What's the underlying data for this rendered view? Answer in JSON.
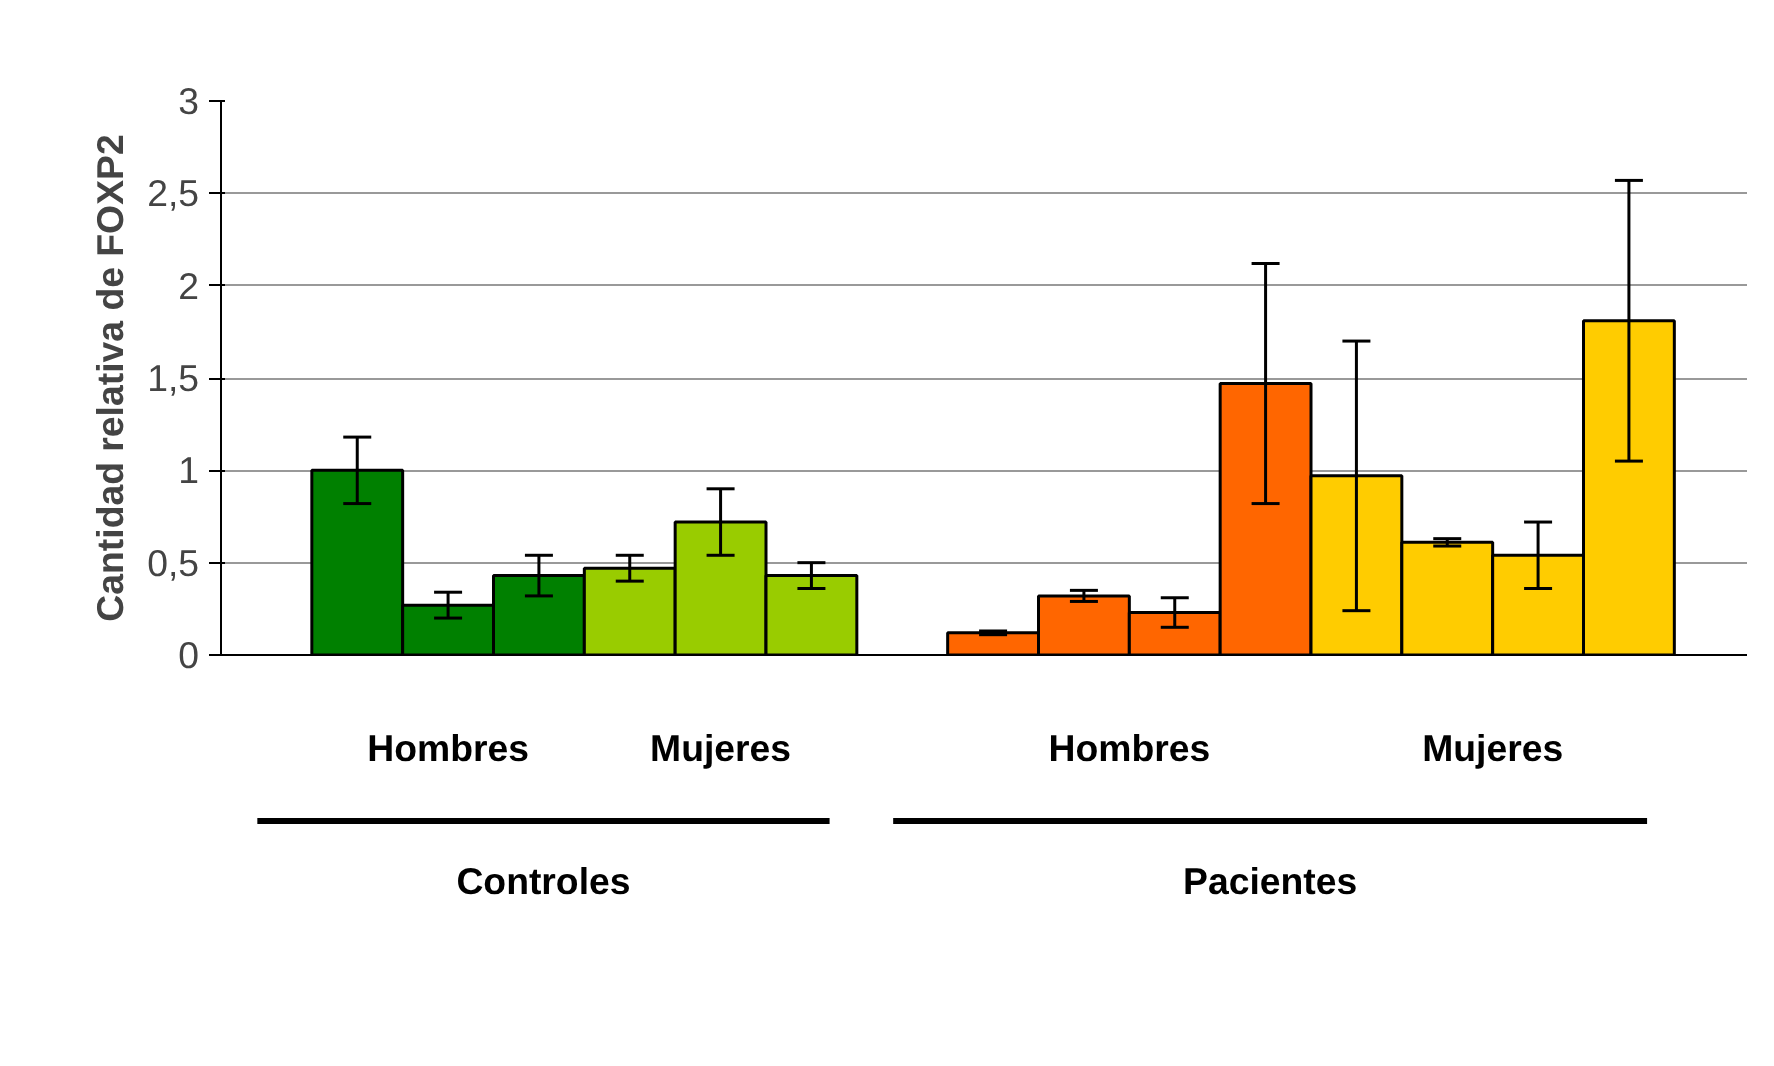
{
  "chart_data": {
    "type": "bar",
    "ylabel": "Cantidad relativa de FOXP2",
    "categories": [
      null,
      null,
      null,
      null,
      null,
      null,
      null,
      null,
      null,
      null,
      null,
      null,
      null,
      null
    ],
    "values": [
      1.0,
      0.27,
      0.43,
      0.47,
      0.72,
      0.43,
      0.12,
      0.32,
      0.23,
      1.47,
      0.97,
      0.61,
      0.54,
      1.81
    ],
    "errors": [
      0.18,
      0.07,
      0.11,
      0.07,
      0.18,
      0.07,
      0.01,
      0.03,
      0.08,
      0.65,
      0.73,
      0.02,
      0.18,
      0.76
    ],
    "colors": [
      "#008000",
      "#008000",
      "#008000",
      "#99cc00",
      "#99cc00",
      "#99cc00",
      "#ff6600",
      "#ff6600",
      "#ff6600",
      "#ff6600",
      "#ffcc00",
      "#ffcc00",
      "#ffcc00",
      "#ffcc00"
    ],
    "ylim": [
      0,
      3
    ],
    "yticks": [
      0,
      {
        "value": 0.5,
        "label": "0,5"
      },
      1,
      {
        "value": 1.5,
        "label": "1,5"
      },
      2,
      {
        "value": 2.5,
        "label": "2,5"
      },
      3
    ],
    "grid": "y",
    "tick_labels": "y",
    "annotations": [
      "Hombres",
      "Mujeres",
      "Hombres",
      "Mujeres",
      "Controles",
      "Pacientes"
    ]
  }
}
